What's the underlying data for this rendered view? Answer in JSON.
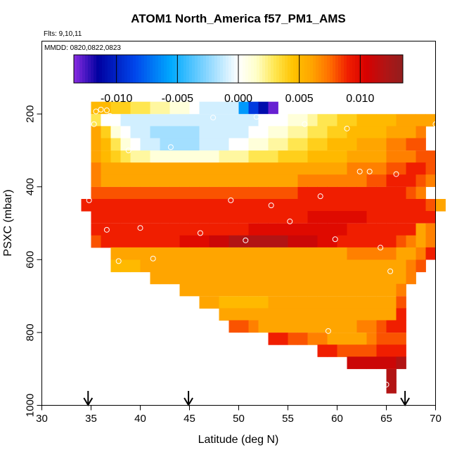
{
  "chart_data": {
    "type": "heatmap",
    "title": "ATOM1 North_America f57_PM1_AMS",
    "flights_label": "Flts: 9,10,11",
    "dates_label": "MMDD: 0820,0822,0823",
    "xlabel": "Latitude (deg N)",
    "ylabel": "PSXC (mbar)",
    "xlim": [
      30,
      70
    ],
    "ylim": [
      1000,
      0
    ],
    "x_ticks": [
      "30",
      "35",
      "40",
      "45",
      "50",
      "55",
      "60",
      "65",
      "70"
    ],
    "y_ticks": [
      "200",
      "400",
      "600",
      "800",
      "1000"
    ],
    "colorbar": {
      "range": [
        -0.0135,
        0.0135
      ],
      "ticks": [
        "-0.010",
        "-0.005",
        "0.000",
        "0.005",
        "0.010"
      ],
      "tick_values": [
        -0.01,
        -0.005,
        0.0,
        0.005,
        0.01
      ]
    },
    "cell_width_deg": 1,
    "cell_height_mbar": 33.3,
    "rows": [
      {
        "p": 183,
        "start": 35,
        "values": [
          0.005,
          0.005,
          0.004,
          0.004,
          0.003,
          0.003,
          0.002,
          0.002,
          0.001,
          0.001,
          0.0,
          -0.001,
          -0.001,
          -0.001,
          -0.001,
          -0.006,
          -0.009,
          -0.011,
          -0.013
        ]
      },
      {
        "p": 217,
        "start": 35,
        "values": [
          0.003,
          0.0,
          0.0,
          -0.001,
          -0.001,
          -0.001,
          -0.001,
          -0.001,
          -0.001,
          -0.001,
          -0.001,
          -0.001,
          -0.001,
          -0.001,
          -0.001,
          -0.001,
          -0.001,
          0.0,
          0.0,
          0.0,
          0.001,
          0.001,
          0.002,
          0.003,
          0.003,
          0.004,
          0.004,
          0.005,
          0.005,
          0.005,
          0.005,
          0.006,
          0.006,
          0.006,
          0.006
        ]
      },
      {
        "p": 250,
        "start": 35,
        "values": [
          0.006,
          0.004,
          0.001,
          0.0,
          -0.001,
          -0.001,
          -0.002,
          -0.002,
          -0.002,
          -0.002,
          -0.002,
          -0.001,
          -0.001,
          -0.001,
          -0.001,
          -0.001,
          0.0,
          0.0,
          0.001,
          0.001,
          0.002,
          0.002,
          0.003,
          0.003,
          0.004,
          0.004,
          0.005,
          0.005,
          0.005,
          0.005,
          0.006,
          0.006,
          0.006,
          0.007
        ]
      },
      {
        "p": 283,
        "start": 35,
        "values": [
          0.006,
          0.005,
          0.003,
          0.001,
          0.0,
          -0.001,
          -0.001,
          -0.002,
          -0.002,
          -0.002,
          -0.002,
          -0.001,
          -0.001,
          -0.001,
          0.0,
          0.0,
          0.001,
          0.001,
          0.002,
          0.002,
          0.003,
          0.003,
          0.004,
          0.004,
          0.005,
          0.005,
          0.005,
          0.006,
          0.006,
          0.006,
          0.007,
          0.007,
          0.008,
          0.008
        ]
      },
      {
        "p": 317,
        "start": 35,
        "values": [
          0.006,
          0.005,
          0.004,
          0.003,
          0.002,
          0.002,
          0.001,
          0.001,
          0.001,
          0.001,
          0.001,
          0.001,
          0.001,
          0.002,
          0.002,
          0.002,
          0.003,
          0.003,
          0.003,
          0.004,
          0.004,
          0.004,
          0.005,
          0.005,
          0.005,
          0.005,
          0.006,
          0.006,
          0.006,
          0.006,
          0.007,
          0.007,
          0.007,
          0.008,
          0.008
        ]
      },
      {
        "p": 350,
        "start": 35,
        "values": [
          0.007,
          0.006,
          0.006,
          0.006,
          0.006,
          0.006,
          0.006,
          0.006,
          0.006,
          0.006,
          0.006,
          0.006,
          0.006,
          0.006,
          0.006,
          0.006,
          0.006,
          0.006,
          0.006,
          0.006,
          0.006,
          0.006,
          0.006,
          0.006,
          0.006,
          0.006,
          0.007,
          0.007,
          0.007,
          0.007,
          0.008,
          0.008,
          0.009,
          0.009,
          0.008
        ]
      },
      {
        "p": 383,
        "start": 35,
        "values": [
          0.007,
          0.006,
          0.006,
          0.006,
          0.006,
          0.006,
          0.006,
          0.006,
          0.006,
          0.006,
          0.006,
          0.006,
          0.006,
          0.006,
          0.006,
          0.006,
          0.006,
          0.006,
          0.006,
          0.006,
          0.006,
          0.007,
          0.007,
          0.007,
          0.007,
          0.007,
          0.007,
          0.007,
          0.008,
          0.008,
          0.009,
          0.009,
          0.009,
          0.008,
          0.007
        ]
      },
      {
        "p": 417,
        "start": 35,
        "values": [
          0.008,
          0.008,
          0.008,
          0.008,
          0.008,
          0.008,
          0.008,
          0.008,
          0.008,
          0.008,
          0.008,
          0.008,
          0.008,
          0.008,
          0.008,
          0.008,
          0.008,
          0.008,
          0.008,
          0.008,
          0.008,
          0.009,
          0.009,
          0.009,
          0.009,
          0.009,
          0.009,
          0.009,
          0.009,
          0.009,
          0.009,
          0.009,
          0.008,
          0.007
        ]
      },
      {
        "p": 450,
        "start": 34,
        "values": [
          0.009,
          0.009,
          0.009,
          0.009,
          0.009,
          0.009,
          0.009,
          0.009,
          0.009,
          0.009,
          0.009,
          0.009,
          0.009,
          0.009,
          0.009,
          0.009,
          0.009,
          0.009,
          0.009,
          0.009,
          0.009,
          0.009,
          0.009,
          0.009,
          0.009,
          0.009,
          0.009,
          0.009,
          0.009,
          0.009,
          0.009,
          0.009,
          0.009,
          0.009,
          0.009,
          0.008,
          0.006
        ]
      },
      {
        "p": 483,
        "start": 35,
        "values": [
          0.009,
          0.009,
          0.009,
          0.009,
          0.009,
          0.009,
          0.009,
          0.009,
          0.009,
          0.009,
          0.009,
          0.009,
          0.009,
          0.009,
          0.009,
          0.009,
          0.009,
          0.009,
          0.009,
          0.009,
          0.009,
          0.009,
          0.01,
          0.01,
          0.01,
          0.01,
          0.01,
          0.01,
          0.009,
          0.009,
          0.009,
          0.009,
          0.009,
          0.009,
          0.009
        ]
      },
      {
        "p": 517,
        "start": 35,
        "values": [
          0.009,
          0.009,
          0.009,
          0.009,
          0.009,
          0.009,
          0.009,
          0.009,
          0.009,
          0.009,
          0.009,
          0.009,
          0.009,
          0.009,
          0.009,
          0.009,
          0.01,
          0.01,
          0.01,
          0.01,
          0.01,
          0.01,
          0.01,
          0.01,
          0.01,
          0.01,
          0.009,
          0.009,
          0.009,
          0.009,
          0.009,
          0.009,
          0.009,
          0.006,
          0.007
        ]
      },
      {
        "p": 550,
        "start": 35,
        "values": [
          0.008,
          0.009,
          0.009,
          0.009,
          0.009,
          0.009,
          0.009,
          0.009,
          0.009,
          0.01,
          0.01,
          0.01,
          0.011,
          0.011,
          0.012,
          0.012,
          0.012,
          0.012,
          0.012,
          0.012,
          0.011,
          0.011,
          0.011,
          0.01,
          0.01,
          0.009,
          0.009,
          0.009,
          0.009,
          0.009,
          0.009,
          0.008,
          0.007,
          0.006,
          0.007
        ]
      },
      {
        "p": 583,
        "start": 37,
        "values": [
          0.006,
          0.006,
          0.006,
          0.006,
          0.006,
          0.006,
          0.006,
          0.006,
          0.006,
          0.006,
          0.006,
          0.006,
          0.006,
          0.006,
          0.006,
          0.006,
          0.006,
          0.006,
          0.006,
          0.006,
          0.006,
          0.006,
          0.006,
          0.006,
          0.007,
          0.007,
          0.007,
          0.007,
          0.007,
          0.006,
          0.006,
          0.007,
          0.009
        ]
      },
      {
        "p": 617,
        "start": 37,
        "values": [
          0.005,
          0.005,
          0.005,
          0.006,
          0.006,
          0.006,
          0.006,
          0.006,
          0.006,
          0.006,
          0.006,
          0.006,
          0.006,
          0.006,
          0.006,
          0.006,
          0.006,
          0.006,
          0.006,
          0.006,
          0.006,
          0.006,
          0.006,
          0.006,
          0.006,
          0.006,
          0.006,
          0.006,
          0.006,
          0.006,
          0.007,
          0.008
        ]
      },
      {
        "p": 650,
        "start": 41,
        "values": [
          0.006,
          0.006,
          0.006,
          0.006,
          0.006,
          0.006,
          0.006,
          0.006,
          0.006,
          0.006,
          0.006,
          0.006,
          0.006,
          0.006,
          0.006,
          0.006,
          0.006,
          0.006,
          0.006,
          0.006,
          0.006,
          0.006,
          0.006,
          0.006,
          0.006,
          0.006,
          0.007
        ]
      },
      {
        "p": 683,
        "start": 44,
        "values": [
          0.006,
          0.006,
          0.006,
          0.006,
          0.006,
          0.006,
          0.006,
          0.006,
          0.006,
          0.006,
          0.006,
          0.006,
          0.006,
          0.006,
          0.006,
          0.006,
          0.006,
          0.006,
          0.006,
          0.006,
          0.006,
          0.006,
          0.007
        ]
      },
      {
        "p": 717,
        "start": 46,
        "values": [
          0.006,
          0.006,
          0.005,
          0.005,
          0.005,
          0.005,
          0.005,
          0.006,
          0.006,
          0.006,
          0.006,
          0.006,
          0.006,
          0.006,
          0.006,
          0.006,
          0.006,
          0.006,
          0.006,
          0.006,
          0.008
        ]
      },
      {
        "p": 750,
        "start": 48,
        "values": [
          0.006,
          0.006,
          0.006,
          0.006,
          0.006,
          0.006,
          0.006,
          0.006,
          0.006,
          0.006,
          0.006,
          0.006,
          0.006,
          0.006,
          0.006,
          0.006,
          0.006,
          0.006,
          0.009
        ]
      },
      {
        "p": 783,
        "start": 49,
        "values": [
          0.008,
          0.008,
          0.007,
          0.006,
          0.006,
          0.006,
          0.006,
          0.006,
          0.006,
          0.006,
          0.006,
          0.006,
          0.006,
          0.007,
          0.007,
          0.008,
          0.009,
          0.009
        ]
      },
      {
        "p": 817,
        "start": 53,
        "values": [
          0.009,
          0.009,
          0.008,
          0.008,
          0.007,
          0.007,
          0.006,
          0.006,
          0.006,
          0.006,
          0.007,
          0.008,
          0.008,
          0.008
        ]
      },
      {
        "p": 850,
        "start": 58,
        "values": [
          0.009,
          0.009,
          0.008,
          0.008,
          0.008,
          0.008,
          0.009,
          0.009,
          0.009
        ]
      },
      {
        "p": 883,
        "start": 61,
        "values": [
          0.011,
          0.011,
          0.011,
          0.011,
          0.011,
          0.012
        ]
      },
      {
        "p": 917,
        "start": 65,
        "values": [
          0.012
        ]
      },
      {
        "p": 950,
        "start": 65,
        "values": [
          0.012
        ]
      }
    ],
    "flight_points": [
      {
        "lat": 35.5,
        "p": 193
      },
      {
        "lat": 36.0,
        "p": 188
      },
      {
        "lat": 36.6,
        "p": 190
      },
      {
        "lat": 36.9,
        "p": 205
      },
      {
        "lat": 35.3,
        "p": 228
      },
      {
        "lat": 47.4,
        "p": 210
      },
      {
        "lat": 51.8,
        "p": 208
      },
      {
        "lat": 56.7,
        "p": 228
      },
      {
        "lat": 61.0,
        "p": 240
      },
      {
        "lat": 70.0,
        "p": 228
      },
      {
        "lat": 38.8,
        "p": 300
      },
      {
        "lat": 43.1,
        "p": 291
      },
      {
        "lat": 62.3,
        "p": 358
      },
      {
        "lat": 63.3,
        "p": 358
      },
      {
        "lat": 66.0,
        "p": 365
      },
      {
        "lat": 34.8,
        "p": 437
      },
      {
        "lat": 49.2,
        "p": 437
      },
      {
        "lat": 53.3,
        "p": 451
      },
      {
        "lat": 58.3,
        "p": 426
      },
      {
        "lat": 55.2,
        "p": 495
      },
      {
        "lat": 40.0,
        "p": 513
      },
      {
        "lat": 36.6,
        "p": 518
      },
      {
        "lat": 46.1,
        "p": 527
      },
      {
        "lat": 50.7,
        "p": 547
      },
      {
        "lat": 59.8,
        "p": 544
      },
      {
        "lat": 64.4,
        "p": 567
      },
      {
        "lat": 37.8,
        "p": 604
      },
      {
        "lat": 41.3,
        "p": 597
      },
      {
        "lat": 65.4,
        "p": 632
      },
      {
        "lat": 59.1,
        "p": 796
      },
      {
        "lat": 65.0,
        "p": 943
      }
    ],
    "arrow_latitudes": [
      34.7,
      44.9,
      66.9
    ]
  }
}
